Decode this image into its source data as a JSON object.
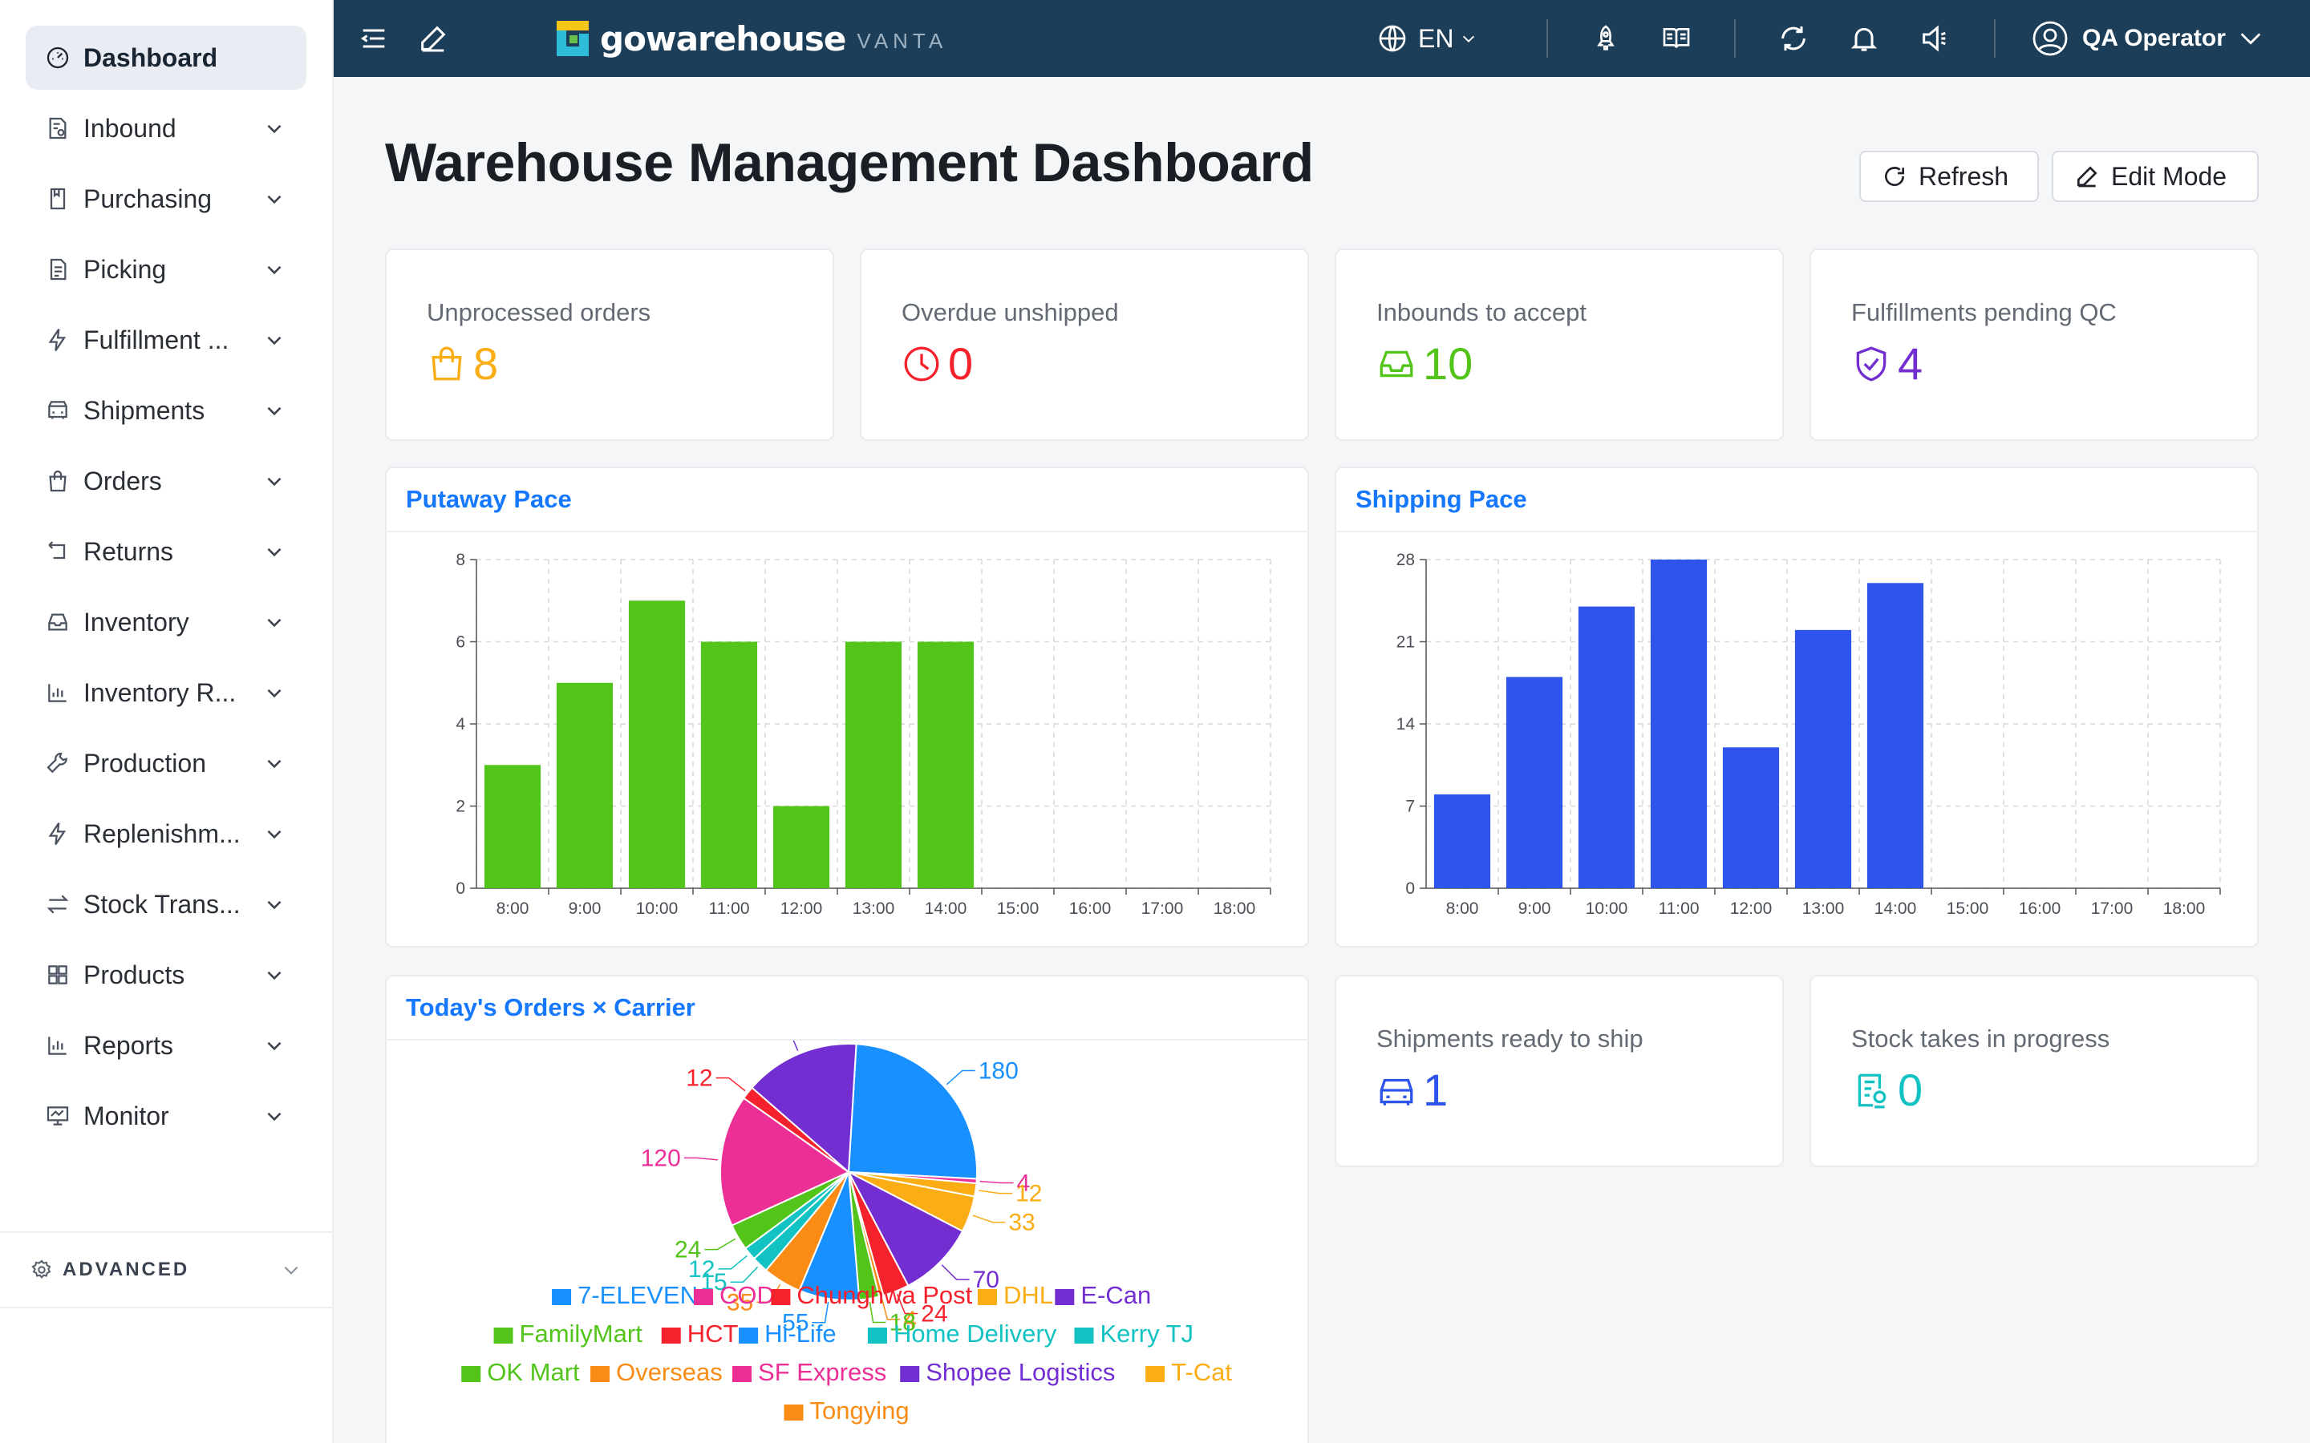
{
  "sidebar": {
    "items": [
      {
        "label": "Dashboard",
        "icon": "dashboard-icon",
        "active": true
      },
      {
        "label": "Inbound",
        "icon": "inbound-icon"
      },
      {
        "label": "Purchasing",
        "icon": "purchasing-icon"
      },
      {
        "label": "Picking",
        "icon": "picking-icon"
      },
      {
        "label": "Fulfillment ...",
        "icon": "bolt-icon"
      },
      {
        "label": "Shipments",
        "icon": "truck-icon"
      },
      {
        "label": "Orders",
        "icon": "bag-icon"
      },
      {
        "label": "Returns",
        "icon": "return-icon"
      },
      {
        "label": "Inventory",
        "icon": "inbox-icon"
      },
      {
        "label": "Inventory R...",
        "icon": "bar-chart-icon"
      },
      {
        "label": "Production",
        "icon": "wrench-icon"
      },
      {
        "label": "Replenishm...",
        "icon": "bolt-icon"
      },
      {
        "label": "Stock Trans...",
        "icon": "swap-icon"
      },
      {
        "label": "Products",
        "icon": "grid-icon"
      },
      {
        "label": "Reports",
        "icon": "bar-chart-icon"
      },
      {
        "label": "Monitor",
        "icon": "monitor-icon"
      }
    ],
    "advanced_label": "ADVANCED"
  },
  "topbar": {
    "logo_text": "gowarehouse",
    "logo_sub": "VANTA",
    "language": "EN",
    "user_name": "QA Operator"
  },
  "page": {
    "title": "Warehouse Management Dashboard",
    "refresh_label": "Refresh",
    "edit_label": "Edit Mode"
  },
  "stats": {
    "unprocessed": {
      "label": "Unprocessed orders",
      "value": "8",
      "color": "#faad14",
      "icon": "shopping-bag-icon"
    },
    "overdue": {
      "label": "Overdue unshipped",
      "value": "0",
      "color": "#f5222d",
      "icon": "clock-icon"
    },
    "inbounds": {
      "label": "Inbounds to accept",
      "value": "10",
      "color": "#52c41a",
      "icon": "inbox-icon"
    },
    "pending_qc": {
      "label": "Fulfillments pending QC",
      "value": "4",
      "color": "#722ed1",
      "icon": "shield-check-icon"
    },
    "ready_ship": {
      "label": "Shipments ready to ship",
      "value": "1",
      "color": "#2f54eb",
      "icon": "car-icon"
    },
    "stock_takes": {
      "label": "Stock takes in progress",
      "value": "0",
      "color": "#13c2c2",
      "icon": "audit-icon"
    }
  },
  "chart_data": [
    {
      "type": "bar",
      "title": "Putaway Pace",
      "categories": [
        "8:00",
        "9:00",
        "10:00",
        "11:00",
        "12:00",
        "13:00",
        "14:00",
        "15:00",
        "16:00",
        "17:00",
        "18:00"
      ],
      "values": [
        3,
        5,
        7,
        6,
        2,
        6,
        6,
        0,
        0,
        0,
        0
      ],
      "yticks": [
        0,
        2,
        4,
        6,
        8
      ],
      "ylim": [
        0,
        8
      ],
      "grid": true,
      "color": "#52c41a"
    },
    {
      "type": "bar",
      "title": "Shipping Pace",
      "categories": [
        "8:00",
        "9:00",
        "10:00",
        "11:00",
        "12:00",
        "13:00",
        "14:00",
        "15:00",
        "16:00",
        "17:00",
        "18:00"
      ],
      "values": [
        8,
        18,
        24,
        28,
        12,
        22,
        26,
        0,
        0,
        0,
        0
      ],
      "yticks": [
        0,
        7,
        14,
        21,
        28
      ],
      "ylim": [
        0,
        28
      ],
      "grid": true,
      "color": "#2f54eb"
    },
    {
      "type": "pie",
      "title": "Today's Orders × Carrier",
      "legend_position": "bottom",
      "slices": [
        {
          "name": "7-ELEVEN",
          "value": 180,
          "color": "#1890ff"
        },
        {
          "name": "COD",
          "value": 4,
          "color": "#eb2f96"
        },
        {
          "name": "Chunghwa Post",
          "value": 12,
          "color": "#f5222d"
        },
        {
          "name": "DHL",
          "value": 33,
          "color": "#faad14"
        },
        {
          "name": "E-Can",
          "value": 70,
          "color": "#722ed1"
        },
        {
          "name": "FamilyMart",
          "value": 18,
          "color": "#52c41a"
        },
        {
          "name": "HCT",
          "value": 24,
          "color": "#f5222d"
        },
        {
          "name": "Hi-Life",
          "value": 55,
          "color": "#1890ff"
        },
        {
          "name": "Home Delivery",
          "value": 12,
          "color": "#13c2c2"
        },
        {
          "name": "Kerry TJ",
          "value": 15,
          "color": "#13c2c2"
        },
        {
          "name": "OK Mart",
          "value": 24,
          "color": "#52c41a"
        },
        {
          "name": "Overseas",
          "value": 35,
          "color": "#fa8c16"
        },
        {
          "name": "SF Express",
          "value": 120,
          "color": "#eb2f96"
        },
        {
          "name": "Shopee Logistics",
          "value": 105,
          "color": "#722ed1"
        },
        {
          "name": "T-Cat",
          "value": 12,
          "color": "#faad14"
        },
        {
          "name": "Tongying",
          "value": 4,
          "color": "#fa8c16"
        }
      ]
    }
  ]
}
